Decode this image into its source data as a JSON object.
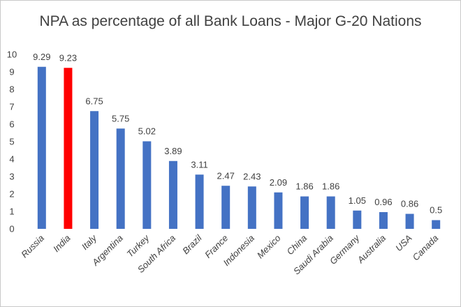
{
  "chart_data": {
    "type": "bar",
    "title": "NPA as percentage of all Bank Loans - Major G-20 Nations",
    "xlabel": "",
    "ylabel": "",
    "ylim": [
      0,
      10
    ],
    "yticks": [
      0,
      1,
      2,
      3,
      4,
      5,
      6,
      7,
      8,
      9,
      10
    ],
    "grid": false,
    "legend": "none",
    "categories": [
      "Russia",
      "India",
      "Italy",
      "Argentina",
      "Turkey",
      "South Africa",
      "Brazil",
      "France",
      "Indonesia",
      "Mexico",
      "China",
      "Saudi Arabia",
      "Germany",
      "Australia",
      "USA",
      "Canada"
    ],
    "values": [
      9.29,
      9.23,
      6.75,
      5.75,
      5.02,
      3.89,
      3.11,
      2.47,
      2.43,
      2.09,
      1.86,
      1.86,
      1.05,
      0.96,
      0.86,
      0.5
    ],
    "data_labels": [
      "9.29",
      "9.23",
      "6.75",
      "5.75",
      "5.02",
      "3.89",
      "3.11",
      "2.47",
      "2.43",
      "2.09",
      "1.86",
      "1.86",
      "1.05",
      "0.96",
      "0.86",
      "0.5"
    ],
    "bar_color": "#4472c4",
    "highlight": {
      "category": "India",
      "color": "#ff0000"
    }
  }
}
